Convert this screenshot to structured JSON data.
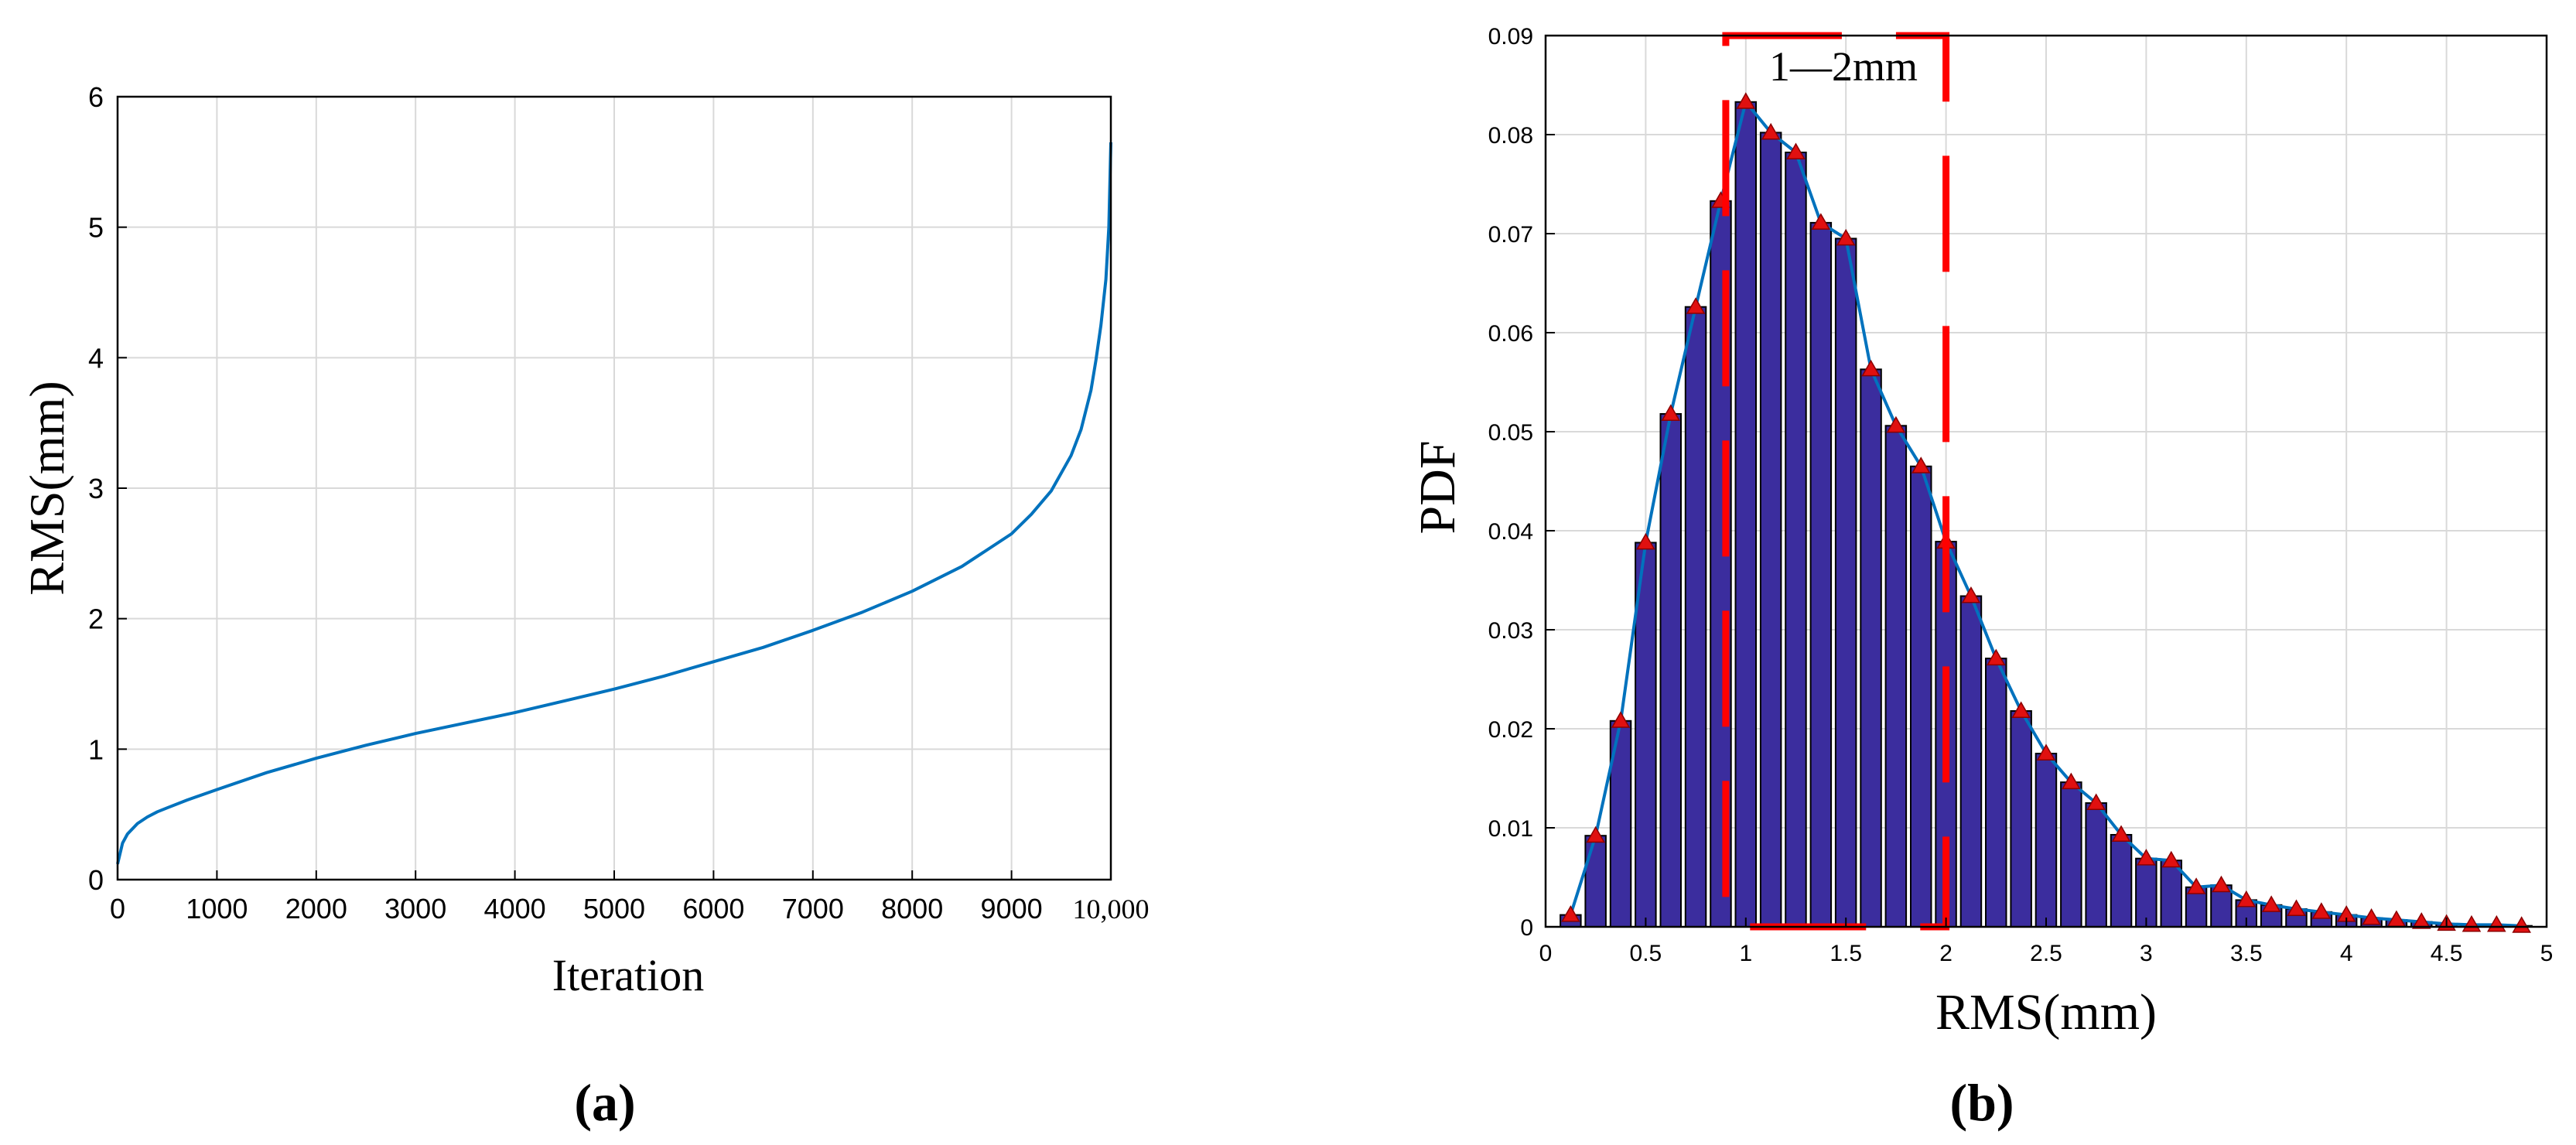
{
  "panels": {
    "a": {
      "label": "(a)"
    },
    "b": {
      "label": "(b)"
    }
  },
  "colors": {
    "line": "#0072BD",
    "bar_fill": "#3B2D9E",
    "bar_edge": "#000000",
    "marker": "#E01010",
    "highlight_box": "#FF0000",
    "grid": "#D9D9D9"
  },
  "chart_data": [
    {
      "id": "a",
      "type": "line",
      "title": "",
      "xlabel": "Iteration",
      "ylabel": "RMS(mm)",
      "xlim": [
        0,
        10000
      ],
      "ylim": [
        0,
        6
      ],
      "xticks": [
        0,
        1000,
        2000,
        3000,
        4000,
        5000,
        6000,
        7000,
        8000,
        9000,
        10000
      ],
      "xtick_labels": [
        "0",
        "1000",
        "2000",
        "3000",
        "4000",
        "5000",
        "6000",
        "7000",
        "8000",
        "9000",
        "10,000"
      ],
      "yticks": [
        0,
        1,
        2,
        3,
        4,
        5,
        6
      ],
      "ytick_labels": [
        "0",
        "1",
        "2",
        "3",
        "4",
        "5",
        "6"
      ],
      "grid": true,
      "series": [
        {
          "x": [
            0,
            50,
            100,
            200,
            300,
            400,
            500,
            700,
            1000,
            1500,
            2000,
            2500,
            3000,
            3500,
            4000,
            4500,
            5000,
            5500,
            6000,
            6500,
            7000,
            7500,
            8000,
            8500,
            9000,
            9200,
            9400,
            9600,
            9700,
            9800,
            9850,
            9900,
            9950,
            9980,
            10000
          ],
          "y": [
            0.12,
            0.28,
            0.35,
            0.43,
            0.48,
            0.52,
            0.55,
            0.61,
            0.69,
            0.82,
            0.93,
            1.03,
            1.12,
            1.2,
            1.28,
            1.37,
            1.46,
            1.56,
            1.67,
            1.78,
            1.91,
            2.05,
            2.21,
            2.4,
            2.65,
            2.8,
            2.98,
            3.25,
            3.45,
            3.75,
            3.98,
            4.25,
            4.6,
            5.0,
            5.65
          ]
        }
      ]
    },
    {
      "id": "b",
      "type": "bar",
      "title": "",
      "xlabel": "RMS(mm)",
      "ylabel": "PDF",
      "xlim": [
        0,
        5
      ],
      "ylim": [
        0,
        0.09
      ],
      "xticks": [
        0,
        0.5,
        1,
        1.5,
        2,
        2.5,
        3,
        3.5,
        4,
        4.5,
        5
      ],
      "xtick_labels": [
        "0",
        "0.5",
        "1",
        "1.5",
        "2",
        "2.5",
        "3",
        "3.5",
        "4",
        "4.5",
        "5"
      ],
      "yticks": [
        0,
        0.01,
        0.02,
        0.03,
        0.04,
        0.05,
        0.06,
        0.07,
        0.08,
        0.09
      ],
      "ytick_labels": [
        "0",
        "0.01",
        "0.02",
        "0.03",
        "0.04",
        "0.05",
        "0.06",
        "0.07",
        "0.08",
        "0.09"
      ],
      "grid": true,
      "bin_width": 0.125,
      "x": [
        0.125,
        0.25,
        0.375,
        0.5,
        0.625,
        0.75,
        0.875,
        1.0,
        1.125,
        1.25,
        1.375,
        1.5,
        1.625,
        1.75,
        1.875,
        2.0,
        2.125,
        2.25,
        2.375,
        2.5,
        2.625,
        2.75,
        2.875,
        3.0,
        3.125,
        3.25,
        3.375,
        3.5,
        3.625,
        3.75,
        3.875,
        4.0,
        4.125,
        4.25,
        4.375,
        4.5,
        4.625,
        4.75,
        4.875
      ],
      "values": [
        0.0012,
        0.0092,
        0.0208,
        0.0388,
        0.0518,
        0.0626,
        0.0733,
        0.0833,
        0.0802,
        0.0782,
        0.0711,
        0.0695,
        0.0563,
        0.0506,
        0.0465,
        0.0389,
        0.0334,
        0.0271,
        0.0218,
        0.0175,
        0.0146,
        0.0125,
        0.0093,
        0.0069,
        0.0067,
        0.004,
        0.0042,
        0.0027,
        0.0022,
        0.0018,
        0.0015,
        0.0012,
        0.0009,
        0.0007,
        0.0005,
        0.0003,
        0.0002,
        0.0002,
        0.0001
      ],
      "annotations": [
        {
          "text": "1—2mm",
          "x_range": [
            0.9,
            2.0
          ],
          "y_range": [
            0,
            0.09
          ]
        }
      ]
    }
  ]
}
